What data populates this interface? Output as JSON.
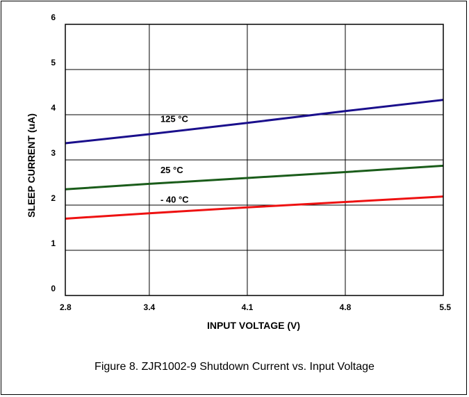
{
  "figure": {
    "caption": "Figure 8. ZJR1002-9 Shutdown Current vs. Input Voltage"
  },
  "chart_data": {
    "type": "line",
    "xlabel": "INPUT VOLTAGE (V)",
    "ylabel": "SLEEP CURRENT (uA)",
    "xlim": [
      2.8,
      5.5
    ],
    "ylim": [
      0,
      6
    ],
    "xticks": [
      "2.8",
      "3.4",
      "4.1",
      "4.8",
      "5.5"
    ],
    "xtick_values": [
      2.8,
      3.4,
      4.1,
      4.8,
      5.5
    ],
    "yticks": [
      "0",
      "1",
      "2",
      "3",
      "4",
      "5",
      "6"
    ],
    "ytick_values": [
      0,
      1,
      2,
      3,
      4,
      5,
      6
    ],
    "grid": true,
    "series": [
      {
        "name": "125 °C",
        "color": "#1a0f8c",
        "x": [
          2.8,
          3.4,
          4.1,
          4.8,
          5.5
        ],
        "values": [
          3.37,
          3.57,
          3.82,
          4.08,
          4.33
        ]
      },
      {
        "name": "25 °C",
        "color": "#1a5c1a",
        "x": [
          2.8,
          3.4,
          4.1,
          4.8,
          5.5
        ],
        "values": [
          2.35,
          2.47,
          2.6,
          2.73,
          2.87
        ]
      },
      {
        "name": "- 40 °C",
        "color": "#ee1111",
        "x": [
          2.8,
          3.4,
          4.1,
          4.8,
          5.5
        ],
        "values": [
          1.7,
          1.82,
          1.95,
          2.07,
          2.19
        ]
      }
    ]
  }
}
